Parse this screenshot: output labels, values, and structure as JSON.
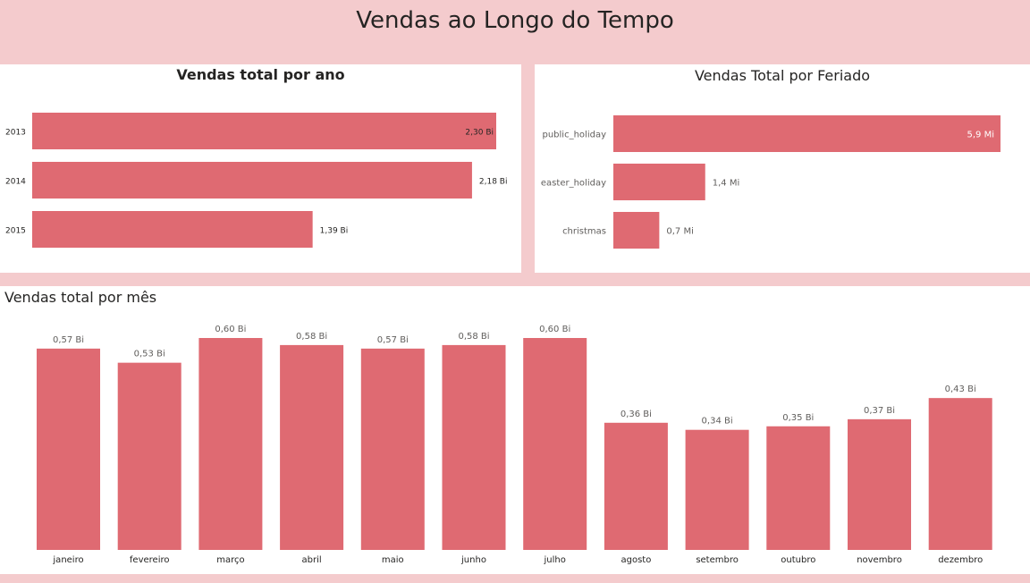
{
  "header": {
    "title": "Vendas ao Longo do Tempo"
  },
  "colors": {
    "bar": "#df6a72",
    "background": "#f4cbcd",
    "panel": "#ffffff"
  },
  "chart_data": [
    {
      "type": "bar",
      "orientation": "horizontal",
      "title": "Vendas total por ano",
      "categories": [
        "2013",
        "2014",
        "2015"
      ],
      "values": [
        2.3,
        2.18,
        1.39
      ],
      "labels": [
        "2,30 Bi",
        "2,18 Bi",
        "1,39 Bi"
      ],
      "xlim": [
        0,
        2.3
      ]
    },
    {
      "type": "bar",
      "orientation": "horizontal",
      "title": "Vendas Total por Feriado",
      "categories": [
        "public_holiday",
        "easter_holiday",
        "christmas"
      ],
      "values": [
        5.9,
        1.4,
        0.7
      ],
      "labels": [
        "5,9 Mi",
        "1,4 Mi",
        "0,7 Mi"
      ],
      "xlim": [
        0,
        5.9
      ]
    },
    {
      "type": "bar",
      "orientation": "vertical",
      "title": "Vendas total por mês",
      "categories": [
        "janeiro",
        "fevereiro",
        "março",
        "abril",
        "maio",
        "junho",
        "julho",
        "agosto",
        "setembro",
        "outubro",
        "novembro",
        "dezembro"
      ],
      "values": [
        0.57,
        0.53,
        0.6,
        0.58,
        0.57,
        0.58,
        0.6,
        0.36,
        0.34,
        0.35,
        0.37,
        0.43
      ],
      "labels": [
        "0,57 Bi",
        "0,53 Bi",
        "0,60 Bi",
        "0,58 Bi",
        "0,57 Bi",
        "0,58 Bi",
        "0,60 Bi",
        "0,36 Bi",
        "0,34 Bi",
        "0,35 Bi",
        "0,37 Bi",
        "0,43 Bi"
      ],
      "ylim": [
        0,
        0.6
      ]
    }
  ]
}
